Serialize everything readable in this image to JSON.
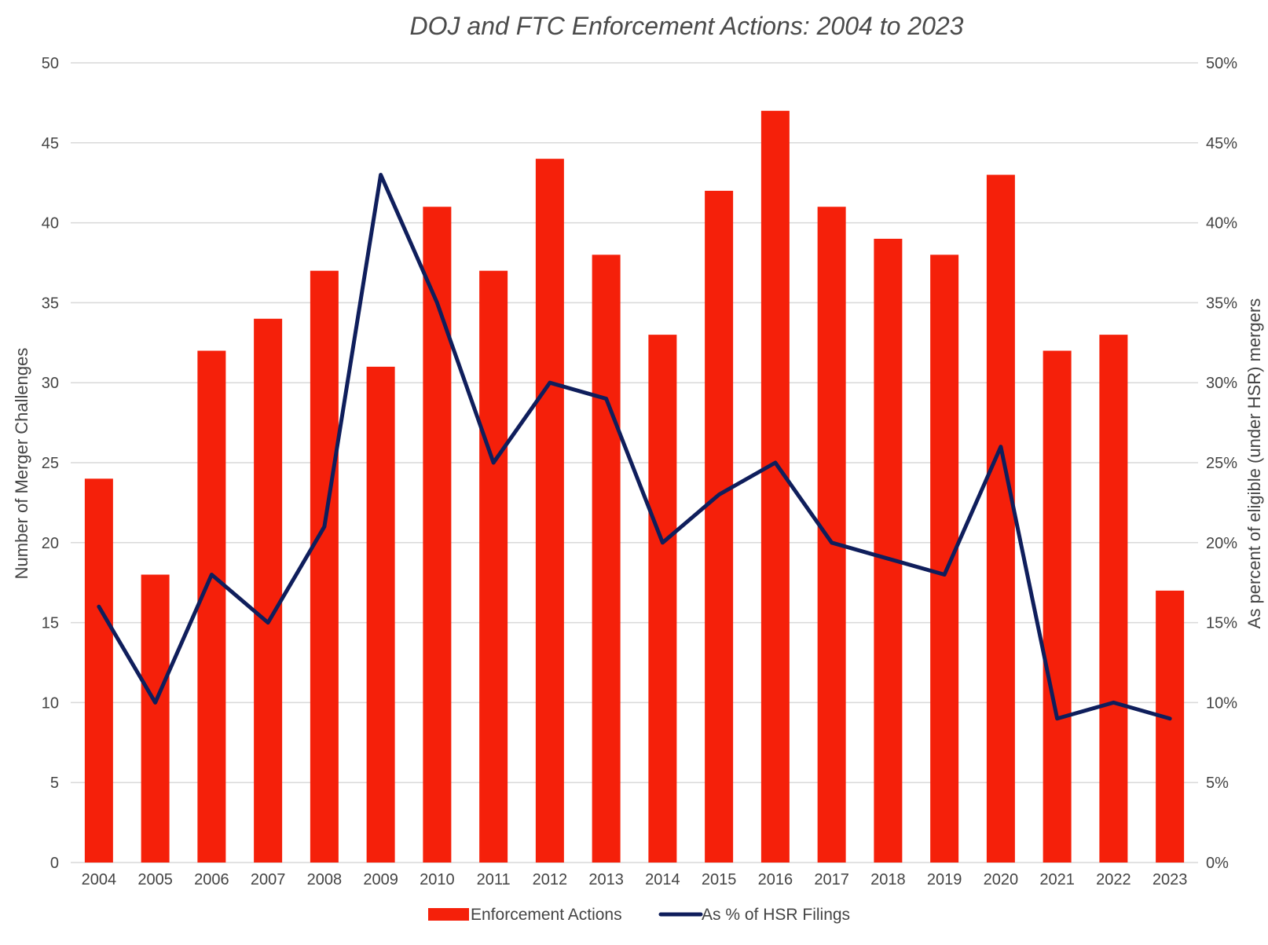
{
  "chart_data": {
    "type": "bar",
    "title": "DOJ and FTC Enforcement Actions: 2004 to 2023",
    "categories": [
      "2004",
      "2005",
      "2006",
      "2007",
      "2008",
      "2009",
      "2010",
      "2011",
      "2012",
      "2013",
      "2014",
      "2015",
      "2016",
      "2017",
      "2018",
      "2019",
      "2020",
      "2021",
      "2022",
      "2023"
    ],
    "series": [
      {
        "name": "Enforcement Actions",
        "kind": "bar",
        "axis": "left",
        "color": "#f5200a",
        "values": [
          24,
          18,
          32,
          34,
          37,
          31,
          41,
          37,
          44,
          38,
          33,
          42,
          47,
          41,
          39,
          38,
          43,
          32,
          33,
          17
        ]
      },
      {
        "name": "As % of HSR Filings",
        "kind": "line",
        "axis": "right",
        "color": "#0f1e5c",
        "values": [
          16,
          10,
          18,
          15,
          21,
          43,
          35,
          25,
          30,
          29,
          20,
          23,
          25,
          20,
          19,
          18,
          26,
          9,
          10,
          9
        ]
      }
    ],
    "ylabel": "Number of Merger Challenges",
    "ylabel_right": "As percent of eligible (under HSR) mergers",
    "ylim": [
      0,
      50
    ],
    "ylim_right": [
      0,
      50
    ],
    "yticks": [
      "0",
      "5",
      "10",
      "15",
      "20",
      "25",
      "30",
      "35",
      "40",
      "45",
      "50"
    ],
    "yticks_right": [
      "0%",
      "5%",
      "10%",
      "15%",
      "20%",
      "25%",
      "30%",
      "35%",
      "40%",
      "45%",
      "50%"
    ],
    "grid": true,
    "legend_position": "bottom-center"
  }
}
